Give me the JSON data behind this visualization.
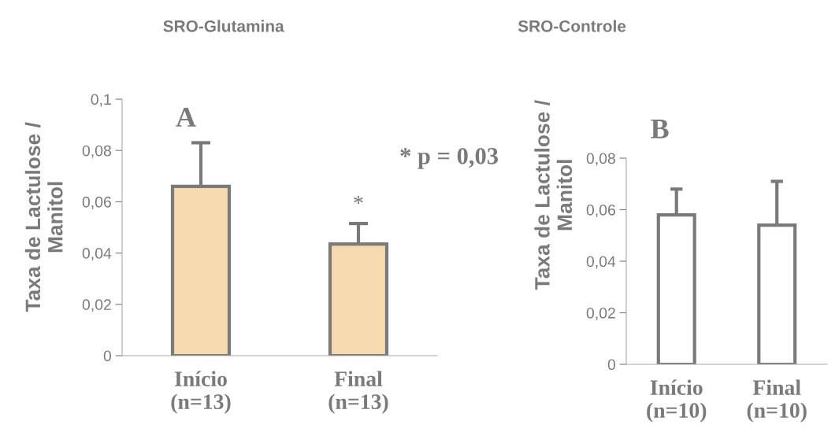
{
  "chart_data": [
    {
      "type": "bar",
      "title": "SRO-Glutamina",
      "ylabel": "Taxa de Lactulose /\nManitol",
      "categories": [
        "Início\n(n=13)",
        "Final\n(n=13)"
      ],
      "values": [
        0.066,
        0.0435
      ],
      "color": "#f7d9b0",
      "errors": [
        [
          0.066,
          0.083
        ],
        [
          0.0435,
          0.0515
        ]
      ],
      "ylim": [
        0,
        0.1
      ],
      "yticks": [
        {
          "value": 0,
          "label": "0"
        },
        {
          "value": 0.02,
          "label": "0,02"
        },
        {
          "value": 0.04,
          "label": "0,04"
        },
        {
          "value": 0.06,
          "label": "0,06"
        },
        {
          "value": 0.08,
          "label": "0,08"
        },
        {
          "value": 0.1,
          "label": "0,1"
        }
      ],
      "grid": false,
      "legend": false,
      "annotations": [
        "A",
        "* p = 0,03",
        {
          "text": "*",
          "x": "Final\n(n=13)",
          "y": 0.0515
        }
      ]
    },
    {
      "type": "bar",
      "title": "SRO-Controle",
      "ylabel": "Taxa de Lactulose /\nManitol",
      "categories": [
        "Início\n(n=10)",
        "Final\n(n=10)"
      ],
      "values": [
        0.058,
        0.054
      ],
      "color": "#ffffff",
      "errors": [
        [
          0.058,
          0.068
        ],
        [
          0.054,
          0.071
        ]
      ],
      "ylim": [
        0,
        0.08
      ],
      "yticks": [
        {
          "value": 0,
          "label": "0"
        },
        {
          "value": 0.02,
          "label": "0,02"
        },
        {
          "value": 0.04,
          "label": "0,04"
        },
        {
          "value": 0.06,
          "label": "0,06"
        },
        {
          "value": 0.08,
          "label": "0,08"
        }
      ],
      "grid": false,
      "legend": false,
      "annotations": [
        "B"
      ]
    }
  ]
}
